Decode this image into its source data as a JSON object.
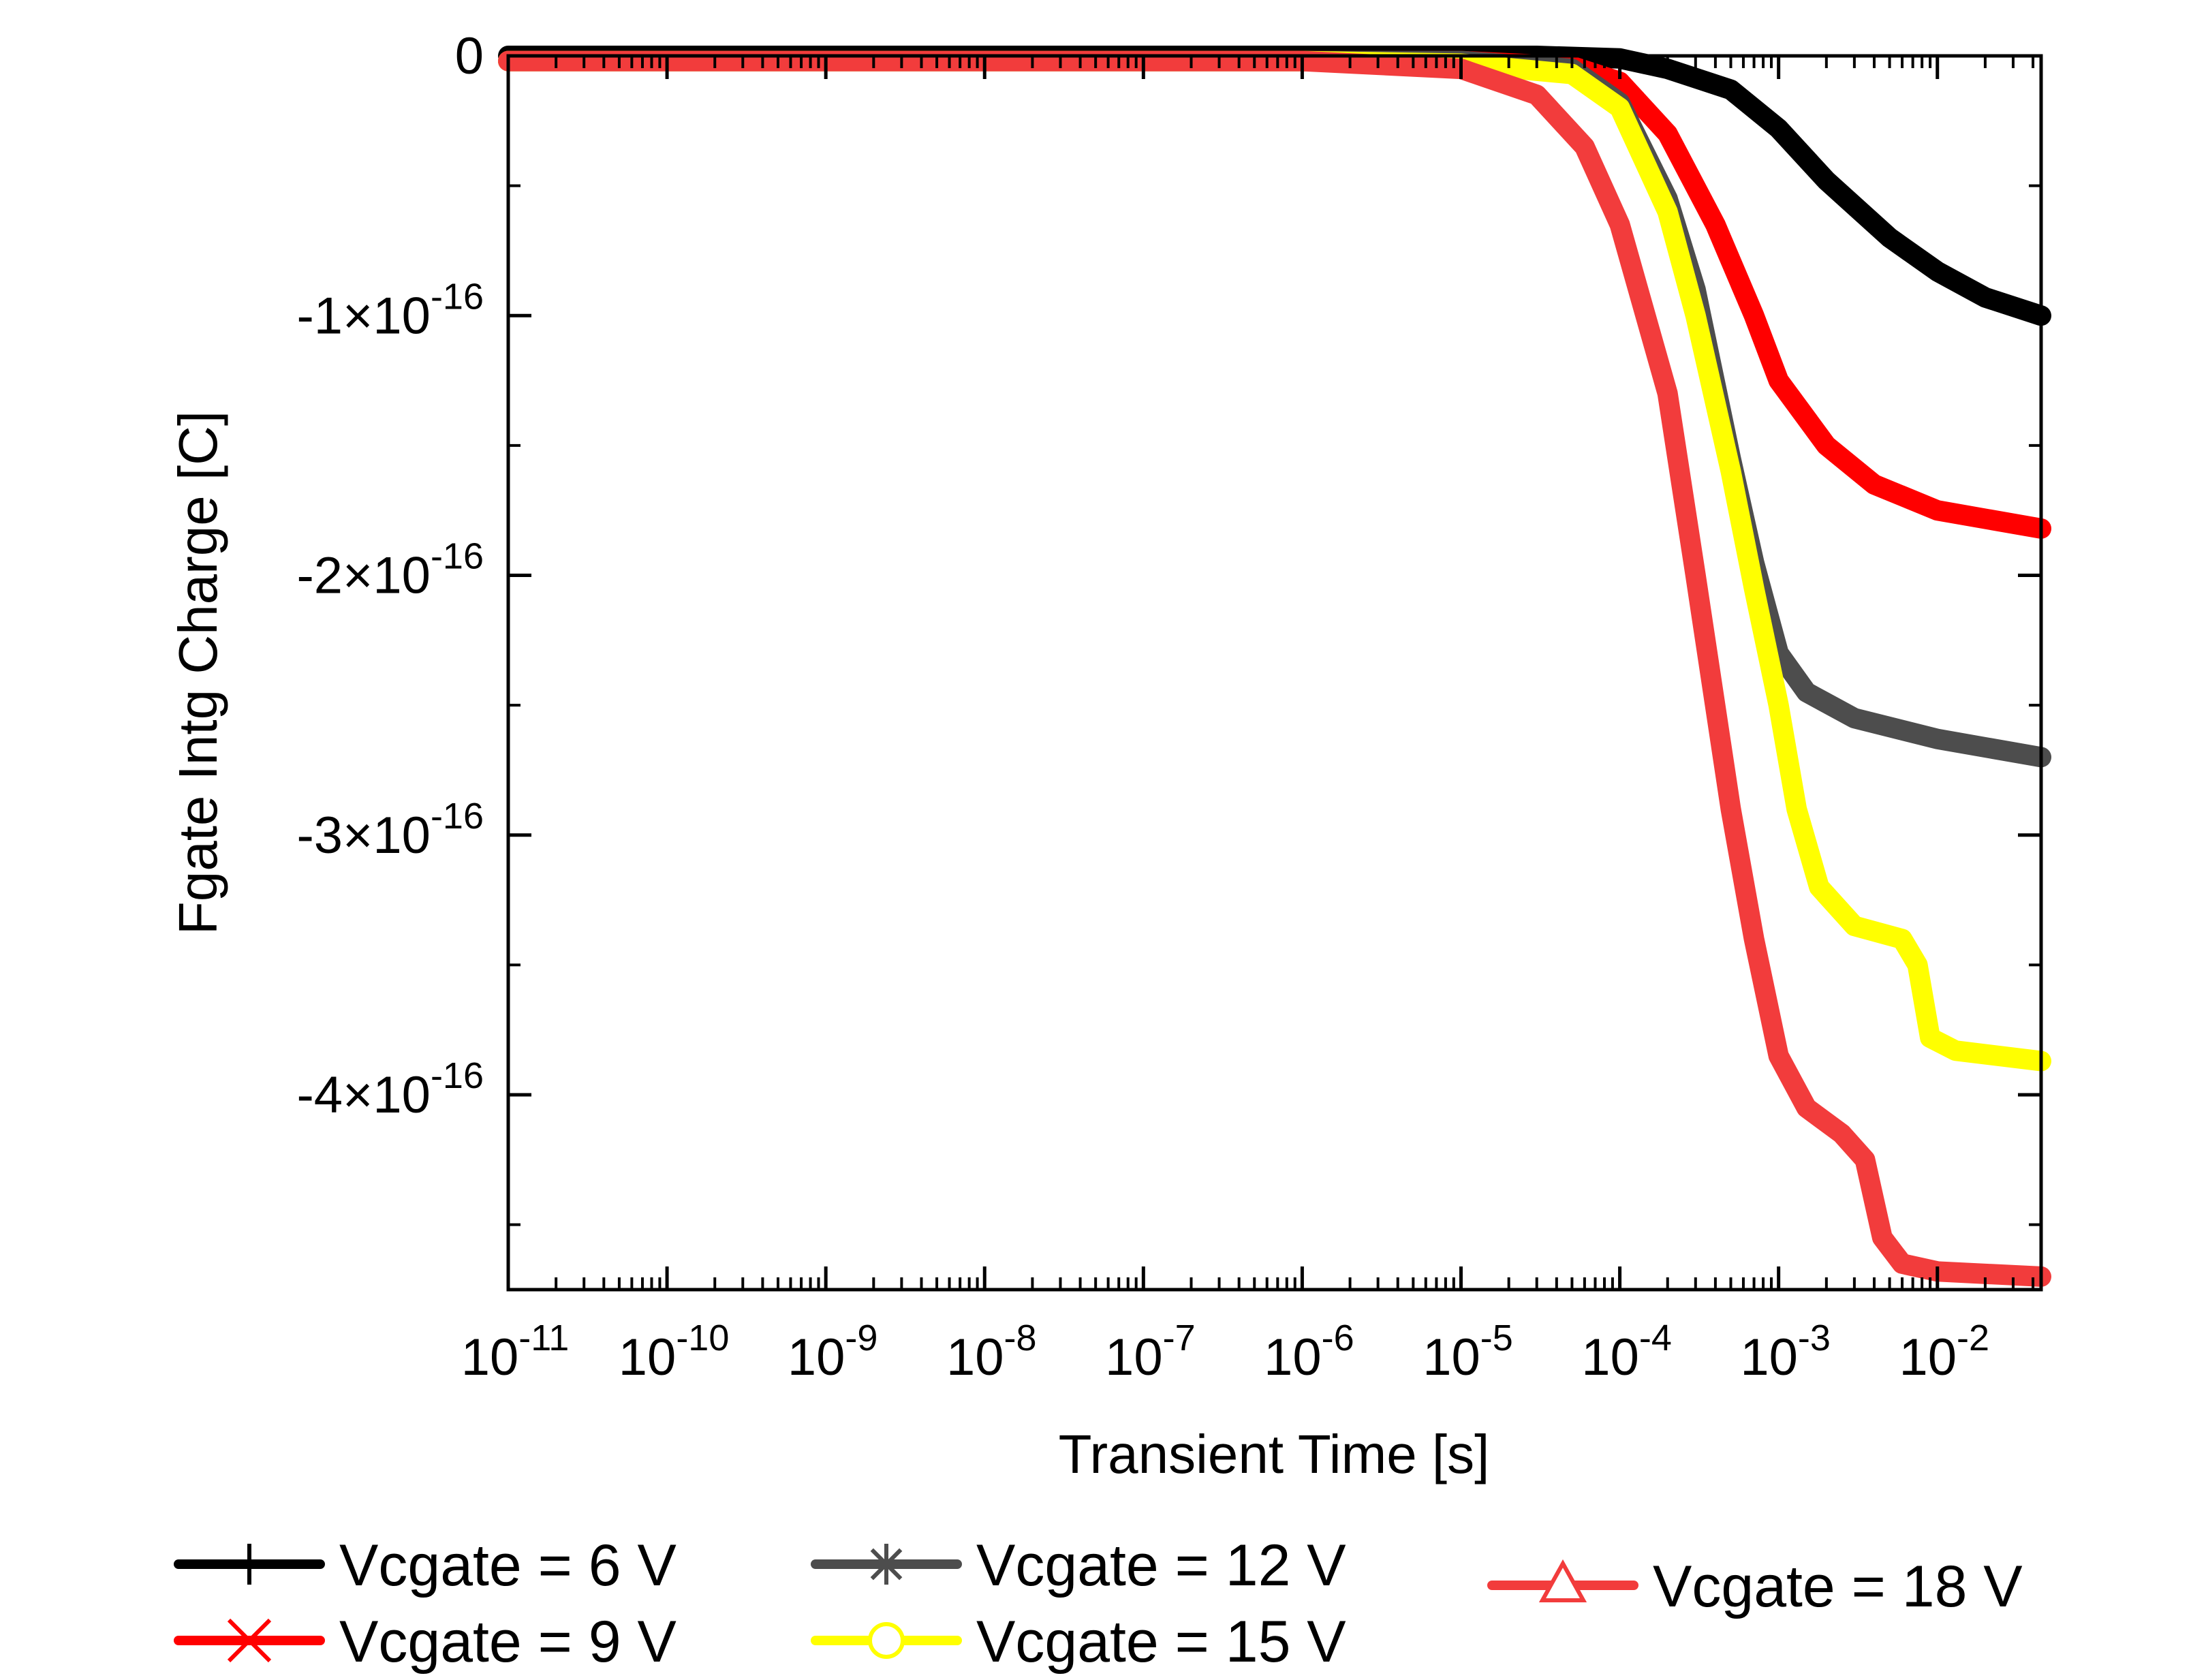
{
  "chart_data": {
    "type": "line",
    "xlabel": "Transient Time [s]",
    "ylabel": "Fgate Intg Charge [C]",
    "x_scale": "log",
    "xlim": [
      1e-11,
      0.045
    ],
    "ylim": [
      -4.75e-16,
      0
    ],
    "x_ticks": [
      {
        "base": "10",
        "exp": "-11"
      },
      {
        "base": "10",
        "exp": "-10"
      },
      {
        "base": "10",
        "exp": "-9"
      },
      {
        "base": "10",
        "exp": "-8"
      },
      {
        "base": "10",
        "exp": "-7"
      },
      {
        "base": "10",
        "exp": "-6"
      },
      {
        "base": "10",
        "exp": "-5"
      },
      {
        "base": "10",
        "exp": "-4"
      },
      {
        "base": "10",
        "exp": "-3"
      },
      {
        "base": "10",
        "exp": "-2"
      }
    ],
    "y_ticks": [
      {
        "mant": "0",
        "exp": ""
      },
      {
        "mant": "-1×10",
        "exp": "-16"
      },
      {
        "mant": "-2×10",
        "exp": "-16"
      },
      {
        "mant": "-3×10",
        "exp": "-16"
      },
      {
        "mant": "-4×10",
        "exp": "-16"
      }
    ],
    "grid": false,
    "legend_position": "bottom",
    "series": [
      {
        "name": "Vcgate = 6 V",
        "color": "#000000",
        "marker": "plus",
        "points": [
          [
            1e-11,
            0
          ],
          [
            1e-06,
            0
          ],
          [
            3e-05,
            0
          ],
          [
            0.0001,
            -1e-18
          ],
          [
            0.0002,
            -5e-18
          ],
          [
            0.0005,
            -1.3e-17
          ],
          [
            0.001,
            -2.8e-17
          ],
          [
            0.002,
            -4.8e-17
          ],
          [
            0.005,
            -7e-17
          ],
          [
            0.01,
            -8.3e-17
          ],
          [
            0.02,
            -9.3e-17
          ],
          [
            0.045,
            -1e-16
          ]
        ]
      },
      {
        "name": "Vcgate = 9 V",
        "color": "#ff0000",
        "marker": "x",
        "points": [
          [
            1e-11,
            -2e-18
          ],
          [
            1e-06,
            -2e-18
          ],
          [
            1e-05,
            -2e-18
          ],
          [
            5e-05,
            -4e-18
          ],
          [
            0.0001,
            -1e-17
          ],
          [
            0.0002,
            -3e-17
          ],
          [
            0.0004,
            -6.5e-17
          ],
          [
            0.0007,
            -1e-16
          ],
          [
            0.001,
            -1.25e-16
          ],
          [
            0.002,
            -1.5e-16
          ],
          [
            0.004,
            -1.65e-16
          ],
          [
            0.01,
            -1.75e-16
          ],
          [
            0.045,
            -1.82e-16
          ]
        ]
      },
      {
        "name": "Vcgate = 12 V",
        "color": "#4d4d4d",
        "marker": "asterisk",
        "points": [
          [
            1e-11,
            -2e-18
          ],
          [
            1e-06,
            -2e-18
          ],
          [
            1e-05,
            -2e-18
          ],
          [
            5e-05,
            -5e-18
          ],
          [
            0.0001,
            -1.8e-17
          ],
          [
            0.0002,
            -5.5e-17
          ],
          [
            0.0003,
            -9e-17
          ],
          [
            0.0005,
            -1.55e-16
          ],
          [
            0.0007,
            -1.95e-16
          ],
          [
            0.001,
            -2.3e-16
          ],
          [
            0.0015,
            -2.45e-16
          ],
          [
            0.003,
            -2.55e-16
          ],
          [
            0.01,
            -2.63e-16
          ],
          [
            0.045,
            -2.7e-16
          ]
        ]
      },
      {
        "name": "Vcgate = 15 V",
        "color": "#ffff00",
        "marker": "circle",
        "points": [
          [
            1e-11,
            -2e-18
          ],
          [
            1e-06,
            -2e-18
          ],
          [
            1e-05,
            -3e-18
          ],
          [
            5e-05,
            -7e-18
          ],
          [
            0.0001,
            -2e-17
          ],
          [
            0.0002,
            -6e-17
          ],
          [
            0.0003,
            -1e-16
          ],
          [
            0.0005,
            -1.6e-16
          ],
          [
            0.0007,
            -2.05e-16
          ],
          [
            0.001,
            -2.5e-16
          ],
          [
            0.0013,
            -2.9e-16
          ],
          [
            0.0018,
            -3.2e-16
          ],
          [
            0.003,
            -3.35e-16
          ],
          [
            0.006,
            -3.4e-16
          ],
          [
            0.0075,
            -3.5e-16
          ],
          [
            0.009,
            -3.78e-16
          ],
          [
            0.013,
            -3.83e-16
          ],
          [
            0.045,
            -3.87e-16
          ]
        ]
      },
      {
        "name": "Vcgate = 18 V",
        "color": "#f23c3c",
        "marker": "triangle",
        "points": [
          [
            1e-11,
            -2e-18
          ],
          [
            1e-06,
            -2e-18
          ],
          [
            1e-05,
            -5e-18
          ],
          [
            3e-05,
            -1.5e-17
          ],
          [
            6e-05,
            -3.5e-17
          ],
          [
            0.0001,
            -6.5e-17
          ],
          [
            0.0002,
            -1.3e-16
          ],
          [
            0.0003,
            -2e-16
          ],
          [
            0.0005,
            -2.9e-16
          ],
          [
            0.0007,
            -3.4e-16
          ],
          [
            0.001,
            -3.85e-16
          ],
          [
            0.0015,
            -4.05e-16
          ],
          [
            0.0025,
            -4.15e-16
          ],
          [
            0.0035,
            -4.25e-16
          ],
          [
            0.0045,
            -4.55e-16
          ],
          [
            0.006,
            -4.65e-16
          ],
          [
            0.01,
            -4.68e-16
          ],
          [
            0.045,
            -4.7e-16
          ]
        ]
      }
    ]
  }
}
